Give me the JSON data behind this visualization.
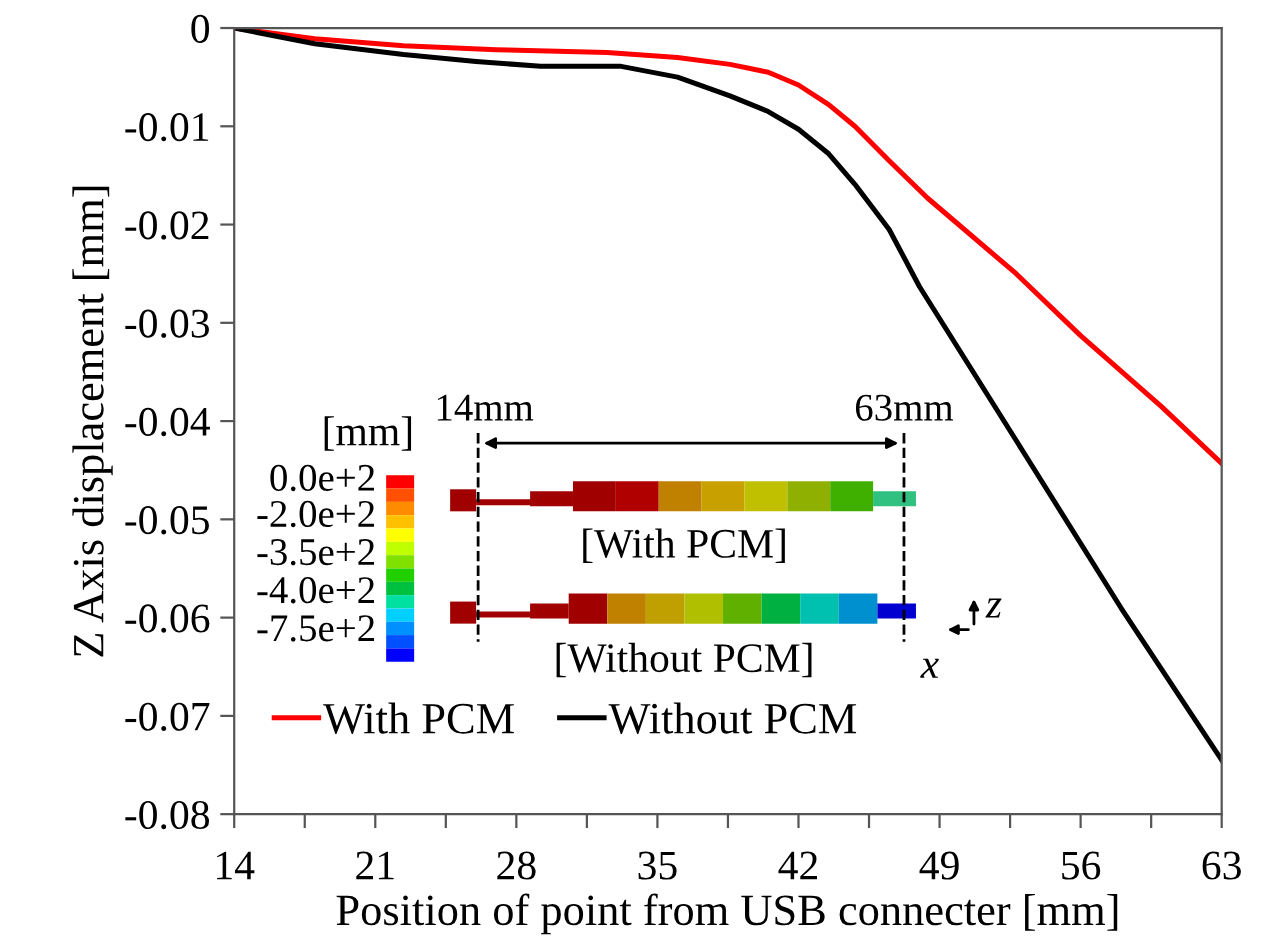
{
  "chart_data": {
    "type": "line",
    "xlabel": "Position of point from USB connecter [mm]",
    "ylabel": "Z Axis displacement [mm]",
    "xlim": [
      14,
      63
    ],
    "ylim": [
      -0.08,
      0
    ],
    "xticks": [
      14,
      {
        "value": 17.5,
        "label": null
      },
      21,
      {
        "value": 24.5,
        "label": null
      },
      28,
      {
        "value": 31.5,
        "label": null
      },
      35,
      {
        "value": 38.5,
        "label": null
      },
      42,
      {
        "value": 45.5,
        "label": null
      },
      49,
      {
        "value": 52.5,
        "label": null
      },
      56,
      {
        "value": 59.5,
        "label": null
      },
      63
    ],
    "yticks": [
      0,
      -0.01,
      -0.02,
      -0.03,
      -0.04,
      -0.05,
      -0.06,
      -0.07,
      -0.08
    ],
    "grid": false,
    "legend": "bottom left",
    "marker": "none",
    "line_style": "solid",
    "series": [
      {
        "name": "With PCM",
        "color": "#ff0000",
        "x": [
          14,
          18,
          22.4,
          27,
          32.5,
          36,
          38.6,
          40.5,
          42,
          43.5,
          44.8,
          46.5,
          48.4,
          52.8,
          56,
          60,
          63
        ],
        "values": [
          0,
          -0.0011,
          -0.0018,
          -0.0022,
          -0.0025,
          -0.003,
          -0.0037,
          -0.0045,
          -0.0058,
          -0.0078,
          -0.01,
          -0.0135,
          -0.0173,
          -0.025,
          -0.0313,
          -0.0385,
          -0.0443
        ]
      },
      {
        "name": "Without PCM",
        "color": "#000000",
        "x": [
          14,
          18,
          22.4,
          26,
          29.2,
          33.2,
          36,
          38.6,
          40.5,
          42,
          43.5,
          44.8,
          46.5,
          48,
          53.3,
          58,
          63
        ],
        "values": [
          0,
          -0.0016,
          -0.0027,
          -0.0034,
          -0.0039,
          -0.0039,
          -0.005,
          -0.0069,
          -0.0085,
          -0.0103,
          -0.0128,
          -0.0159,
          -0.0205,
          -0.0263,
          -0.0436,
          -0.059,
          -0.0745
        ]
      }
    ],
    "annotations": [
      "[mm]",
      "0.0e+2",
      "-2.0e+2",
      "-3.5e+2",
      "-4.0e+2",
      "-7.5e+2",
      "14mm",
      "63mm",
      "[With PCM]",
      "[Without PCM]",
      "z",
      "x"
    ]
  }
}
